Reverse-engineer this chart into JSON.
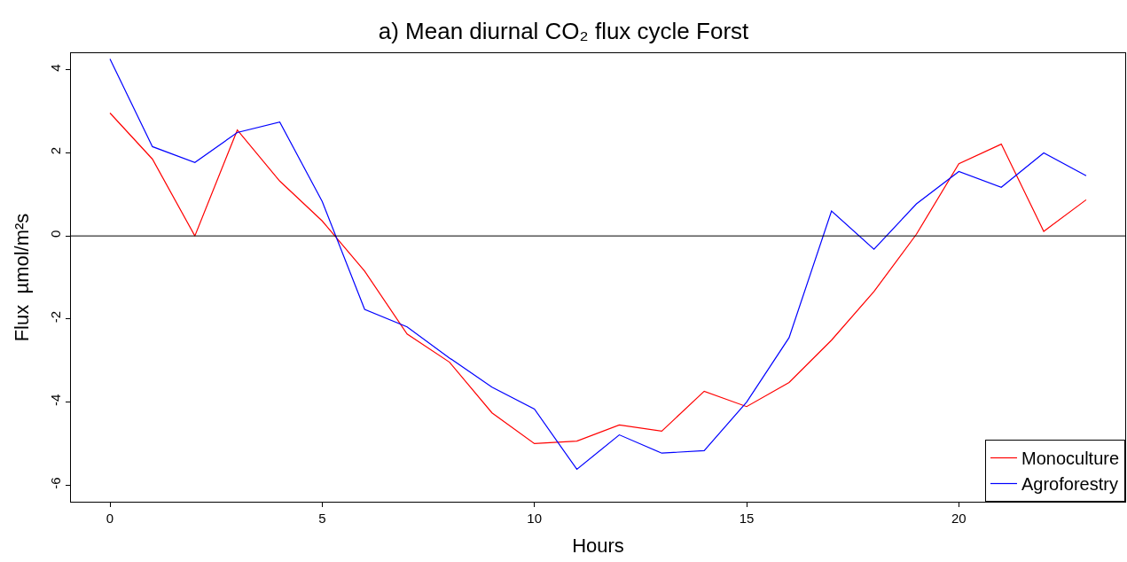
{
  "chart_data": {
    "type": "line",
    "title": "a) Mean diurnal CO₂ flux cycle Forst",
    "xlabel": "Hours",
    "ylabel": "Flux  µmol/m²s",
    "x": [
      0,
      1,
      2,
      3,
      4,
      5,
      6,
      7,
      8,
      9,
      10,
      11,
      12,
      13,
      14,
      15,
      16,
      17,
      18,
      19,
      20,
      21,
      22,
      23
    ],
    "series": [
      {
        "name": "Monoculture",
        "color": "#ff0000",
        "values": [
          2.96,
          1.85,
          0.0,
          2.55,
          1.32,
          0.36,
          -0.85,
          -2.36,
          -3.04,
          -4.26,
          -5.0,
          -4.94,
          -4.55,
          -4.7,
          -3.74,
          -4.11,
          -3.53,
          -2.51,
          -1.34,
          0.04,
          1.74,
          2.21,
          0.11,
          0.87
        ]
      },
      {
        "name": "Agroforestry",
        "color": "#0000ff",
        "values": [
          4.26,
          2.15,
          1.77,
          2.49,
          2.74,
          0.83,
          -1.77,
          -2.19,
          -2.94,
          -3.64,
          -4.17,
          -5.62,
          -4.79,
          -5.23,
          -5.17,
          -4.0,
          -2.45,
          0.6,
          -0.32,
          0.77,
          1.55,
          1.17,
          2.0,
          1.45
        ]
      }
    ],
    "xlim": [
      -0.92,
      23.92
    ],
    "xticks": [
      0,
      5,
      10,
      15,
      20
    ],
    "ylim": [
      -6.4,
      4.4
    ],
    "yticks": [
      -6,
      -4,
      -2,
      0,
      2,
      4
    ],
    "ref_lines": [
      {
        "axis": "y",
        "value": 0,
        "color": "#000000"
      }
    ],
    "legend": "bottom right",
    "grid": false,
    "marker": "none",
    "line_style": "solid"
  }
}
